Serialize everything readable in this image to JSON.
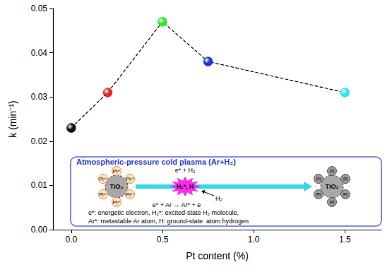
{
  "chart_data": {
    "type": "line",
    "x": [
      0,
      0.2,
      0.5,
      0.75,
      1.5
    ],
    "values": [
      0.023,
      0.031,
      0.047,
      0.038,
      0.031
    ],
    "colors": [
      "#111111",
      "#e8251f",
      "#2ee82e",
      "#1c35d6",
      "#35e3f2"
    ],
    "color": "#000000",
    "line_style": "dashed",
    "marker": "circle",
    "xlabel": "Pt content (%)",
    "ylabel": "k (min⁻¹)",
    "xlim": [
      -0.1,
      1.7
    ],
    "ylim": [
      0,
      0.05
    ],
    "xticks": [
      {
        "value": 0,
        "label": "0.0"
      },
      {
        "value": 0.5,
        "label": "0.5"
      },
      {
        "value": 1,
        "label": "1.0"
      },
      {
        "value": 1.5,
        "label": "1.5"
      }
    ],
    "yticks": [
      {
        "value": 0,
        "label": "0.00"
      },
      {
        "value": 0.01,
        "label": "0.01"
      },
      {
        "value": 0.02,
        "label": "0.02"
      },
      {
        "value": 0.03,
        "label": "0.03"
      },
      {
        "value": 0.04,
        "label": "0.04"
      },
      {
        "value": 0.05,
        "label": "0.05"
      }
    ],
    "grid": false,
    "annotations": {
      "title": "Atmospheric-pressure cold plasma (Ar+H₂)",
      "support": "TiO₂",
      "ion": "Pt⁴⁺",
      "metal": "Pt",
      "top_reaction": "e* + H₂",
      "species": "H₂*, H",
      "bottom_reaction": "e* + Ar → Ar* + e",
      "bottom_gas": "H₂",
      "notes": [
        "e*: energetic electron, H₂*: excited-state H₂ molecule,",
        "Ar*: metastable Ar atom, H: ground-state  atom hydrogen"
      ]
    }
  }
}
